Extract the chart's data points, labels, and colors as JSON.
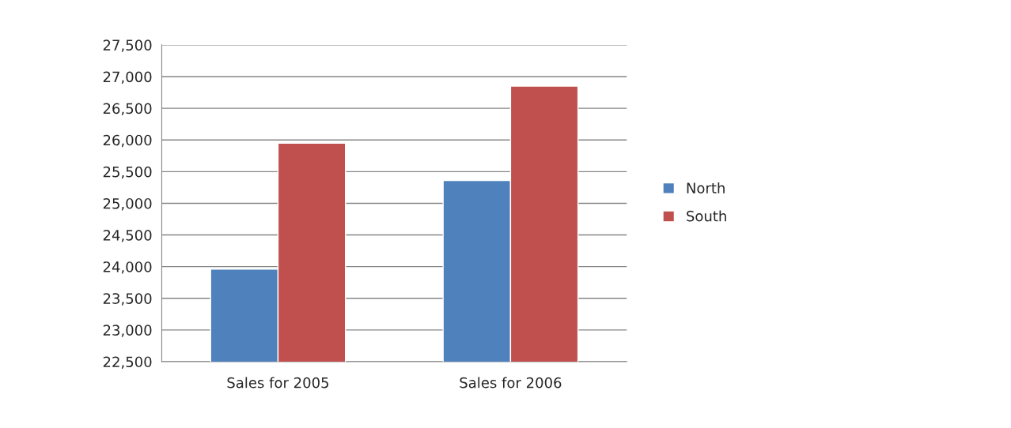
{
  "chart_data": {
    "type": "bar",
    "categories": [
      "Sales for 2005",
      "Sales for 2006"
    ],
    "series": [
      {
        "name": "North",
        "color": "#4f81bd",
        "values": [
          23960,
          25360
        ]
      },
      {
        "name": "South",
        "color": "#c0504d",
        "values": [
          25950,
          26850
        ]
      }
    ],
    "ylim": [
      22500,
      27500
    ],
    "yticks": [
      {
        "value": 22500,
        "label": "22,500"
      },
      {
        "value": 23000,
        "label": "23,000"
      },
      {
        "value": 23500,
        "label": "23,500"
      },
      {
        "value": 24000,
        "label": "24,000"
      },
      {
        "value": 24500,
        "label": "24,500"
      },
      {
        "value": 25000,
        "label": "25,000"
      },
      {
        "value": 25500,
        "label": "25,500"
      },
      {
        "value": 26000,
        "label": "26,000"
      },
      {
        "value": 26500,
        "label": "26,500"
      },
      {
        "value": 27000,
        "label": "27,000"
      },
      {
        "value": 27500,
        "label": "27,500"
      }
    ],
    "grid": "y",
    "legend": "right"
  }
}
